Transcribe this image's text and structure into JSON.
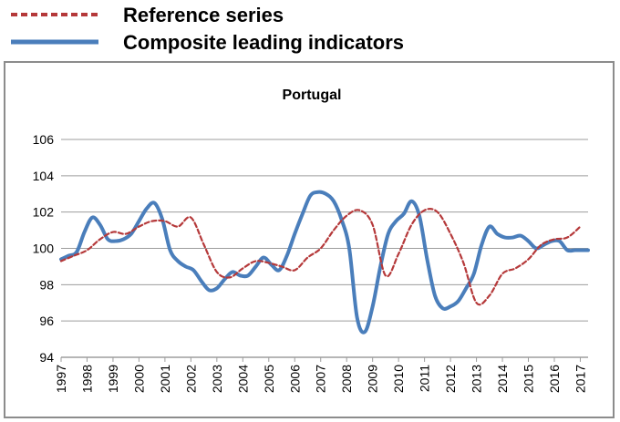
{
  "legend": {
    "reference_label": "Reference series",
    "cli_label": "Composite leading indicators"
  },
  "colors": {
    "reference": "#b5393a",
    "cli": "#4a7ebb",
    "grid": "#9d9d9d",
    "frame": "#8c8c8c"
  },
  "chart_data": {
    "type": "line",
    "title": "Portugal",
    "xlabel": "",
    "ylabel": "",
    "ylim": [
      94,
      106
    ],
    "yticks": [
      "94",
      "96",
      "98",
      "100",
      "102",
      "104",
      "106"
    ],
    "xlim": [
      1997,
      2017.3
    ],
    "categories": [
      "1997",
      "1998",
      "1999",
      "2000",
      "2001",
      "2002",
      "2003",
      "2004",
      "2005",
      "2006",
      "2007",
      "2008",
      "2009",
      "2010",
      "2011",
      "2012",
      "2013",
      "2014",
      "2015",
      "2016",
      "2017"
    ],
    "grid": true,
    "legend_position": "top-left, outside the plot",
    "series": [
      {
        "name": "Reference series",
        "style": "dashed",
        "x": [
          1997.0,
          1997.5,
          1998.0,
          1998.5,
          1999.0,
          1999.5,
          2000.0,
          2000.5,
          2001.0,
          2001.5,
          2002.0,
          2002.5,
          2003.0,
          2003.5,
          2004.0,
          2004.5,
          2005.0,
          2005.5,
          2006.0,
          2006.5,
          2007.0,
          2007.5,
          2008.0,
          2008.5,
          2009.0,
          2009.5,
          2010.0,
          2010.5,
          2011.0,
          2011.5,
          2012.0,
          2012.5,
          2013.0,
          2013.5,
          2014.0,
          2014.5,
          2015.0,
          2015.5,
          2016.0,
          2016.5,
          2017.0
        ],
        "values": [
          99.3,
          99.6,
          99.9,
          100.5,
          100.9,
          100.8,
          101.2,
          101.5,
          101.5,
          101.2,
          101.7,
          100.2,
          98.7,
          98.4,
          98.9,
          99.3,
          99.2,
          99.0,
          98.8,
          99.5,
          100.0,
          101.0,
          101.8,
          102.1,
          101.3,
          98.5,
          99.7,
          101.3,
          102.1,
          102.0,
          100.8,
          99.2,
          97.0,
          97.4,
          98.6,
          98.9,
          99.4,
          100.2,
          100.5,
          100.6,
          101.2
        ]
      },
      {
        "name": "Composite leading indicators",
        "style": "solid",
        "x": [
          1997.0,
          1997.3,
          1997.6,
          1997.9,
          1998.2,
          1998.5,
          1998.8,
          1999.1,
          1999.4,
          1999.7,
          2000.0,
          2000.3,
          2000.6,
          2000.9,
          2001.2,
          2001.5,
          2001.8,
          2002.1,
          2002.4,
          2002.7,
          2003.0,
          2003.3,
          2003.6,
          2003.9,
          2004.2,
          2004.5,
          2004.8,
          2005.1,
          2005.4,
          2005.7,
          2006.0,
          2006.3,
          2006.6,
          2006.9,
          2007.2,
          2007.5,
          2007.8,
          2008.1,
          2008.4,
          2008.7,
          2009.0,
          2009.3,
          2009.6,
          2009.9,
          2010.2,
          2010.5,
          2010.8,
          2011.1,
          2011.4,
          2011.7,
          2012.0,
          2012.3,
          2012.6,
          2012.9,
          2013.2,
          2013.5,
          2013.8,
          2014.1,
          2014.4,
          2014.7,
          2015.0,
          2015.3,
          2015.6,
          2015.9,
          2016.2,
          2016.5,
          2016.8,
          2017.1,
          2017.3
        ],
        "values": [
          99.4,
          99.6,
          99.8,
          100.9,
          101.7,
          101.3,
          100.5,
          100.4,
          100.5,
          100.8,
          101.5,
          102.2,
          102.5,
          101.6,
          99.9,
          99.3,
          99.0,
          98.8,
          98.2,
          97.7,
          97.8,
          98.3,
          98.7,
          98.5,
          98.5,
          99.0,
          99.5,
          99.1,
          98.8,
          99.6,
          100.8,
          101.9,
          102.9,
          103.1,
          103.0,
          102.6,
          101.6,
          100.0,
          96.2,
          95.4,
          96.8,
          99.0,
          100.8,
          101.5,
          101.9,
          102.6,
          101.8,
          99.4,
          97.4,
          96.7,
          96.8,
          97.1,
          97.8,
          98.6,
          100.2,
          101.2,
          100.8,
          100.6,
          100.6,
          100.7,
          100.4,
          100.0,
          100.2,
          100.4,
          100.4,
          99.9,
          99.9,
          99.9,
          99.9
        ]
      }
    ]
  }
}
